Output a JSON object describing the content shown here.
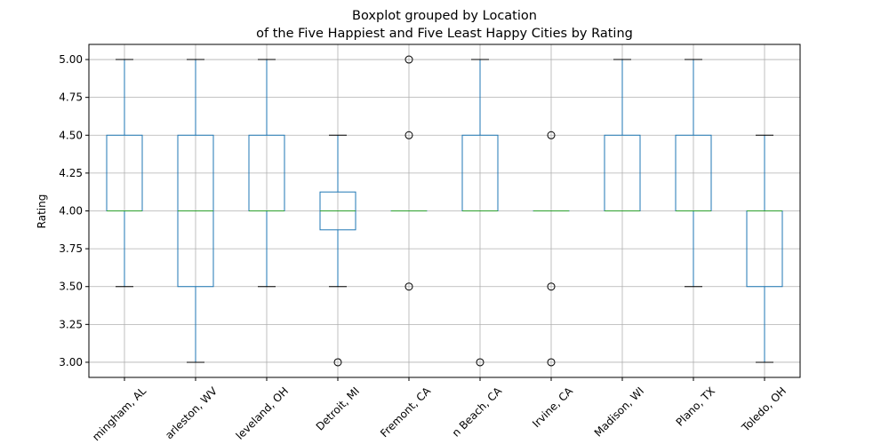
{
  "chart_data": {
    "type": "boxplot",
    "title": "Boxplot grouped by Location",
    "subtitle": "of the Five Happiest and Five Least Happy Cities by Rating",
    "y_label": "Rating",
    "categories": [
      "mingham, AL",
      "arleston, WV",
      "leveland, OH",
      "Detroit, MI",
      "Fremont, CA",
      "n Beach, CA",
      "Irvine, CA",
      "Madison, WI",
      "Plano, TX",
      "Toledo, OH"
    ],
    "boxes": [
      {
        "whislo": 3.5,
        "q1": 4.0,
        "med": 4.0,
        "q3": 4.5,
        "whishi": 5.0,
        "fliers": []
      },
      {
        "whislo": 3.0,
        "q1": 3.5,
        "med": 4.0,
        "q3": 4.5,
        "whishi": 5.0,
        "fliers": []
      },
      {
        "whislo": 3.5,
        "q1": 4.0,
        "med": 4.0,
        "q3": 4.5,
        "whishi": 5.0,
        "fliers": []
      },
      {
        "whislo": 3.5,
        "q1": 3.875,
        "med": 4.0,
        "q3": 4.125,
        "whishi": 4.5,
        "fliers": [
          3.0
        ]
      },
      {
        "whislo": 4.0,
        "q1": 4.0,
        "med": 4.0,
        "q3": 4.0,
        "whishi": 4.0,
        "fliers": [
          3.5,
          4.5,
          5.0
        ]
      },
      {
        "whislo": 4.0,
        "q1": 4.0,
        "med": 4.0,
        "q3": 4.5,
        "whishi": 5.0,
        "fliers": [
          3.0
        ]
      },
      {
        "whislo": 4.0,
        "q1": 4.0,
        "med": 4.0,
        "q3": 4.0,
        "whishi": 4.0,
        "fliers": [
          3.0,
          3.5,
          4.5
        ]
      },
      {
        "whislo": 4.0,
        "q1": 4.0,
        "med": 4.0,
        "q3": 4.5,
        "whishi": 5.0,
        "fliers": []
      },
      {
        "whislo": 3.5,
        "q1": 4.0,
        "med": 4.0,
        "q3": 4.5,
        "whishi": 5.0,
        "fliers": []
      },
      {
        "whislo": 3.0,
        "q1": 3.5,
        "med": 4.0,
        "q3": 4.0,
        "whishi": 4.5,
        "fliers": []
      }
    ],
    "ylim": [
      2.9,
      5.1
    ],
    "yticks": [
      {
        "value": 3.0,
        "label": "3.00"
      },
      {
        "value": 3.25,
        "label": "3.25"
      },
      {
        "value": 3.5,
        "label": "3.50"
      },
      {
        "value": 3.75,
        "label": "3.75"
      },
      {
        "value": 4.0,
        "label": "4.00"
      },
      {
        "value": 4.25,
        "label": "4.25"
      },
      {
        "value": 4.5,
        "label": "4.50"
      },
      {
        "value": 4.75,
        "label": "4.75"
      },
      {
        "value": 5.0,
        "label": "5.00"
      }
    ],
    "grid": true,
    "box_color": "#1f77b4",
    "median_color": "#2ca02c",
    "cap_color": "#000000",
    "flier_color": "#000000"
  }
}
